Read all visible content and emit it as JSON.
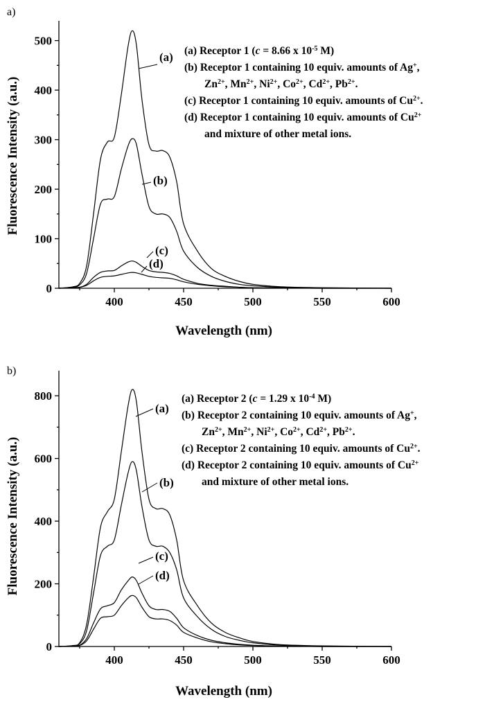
{
  "chart_data": [
    {
      "type": "line",
      "panel_label": "a)",
      "xlabel": "Wavelength (nm)",
      "ylabel": "Fluorescence Intensity (a.u.)",
      "xlim": [
        360,
        600
      ],
      "ylim": [
        0,
        540
      ],
      "xticks": [
        400,
        450,
        500,
        550,
        600
      ],
      "yticks": [
        0,
        100,
        200,
        300,
        400,
        500
      ],
      "grid": false,
      "legend": {
        "placement": "top-right",
        "entries": [
          {
            "runs": [
              [
                "(a) Receptor 1  (",
                ""
              ],
              [
                "c",
                "i"
              ],
              [
                " = 8.66 x 10",
                ""
              ],
              [
                "-5",
                "sup"
              ],
              [
                " M)",
                ""
              ]
            ]
          },
          {
            "runs": [
              [
                "(b) Receptor 1 containing 10 equiv. amounts of Ag",
                ""
              ],
              [
                "+",
                "sup"
              ],
              [
                ",",
                ""
              ]
            ]
          },
          {
            "runs": [
              [
                "Zn",
                ""
              ],
              [
                "2+",
                "sup"
              ],
              [
                ", Mn",
                ""
              ],
              [
                "2+",
                "sup"
              ],
              [
                ", Ni",
                ""
              ],
              [
                "2+",
                "sup"
              ],
              [
                ", Co",
                ""
              ],
              [
                "2+",
                "sup"
              ],
              [
                ", Cd",
                ""
              ],
              [
                "2+",
                "sup"
              ],
              [
                ", Pb",
                ""
              ],
              [
                "2+",
                "sup"
              ],
              [
                ".",
                ""
              ]
            ]
          },
          {
            "runs": [
              [
                "(c) Receptor 1 containing 10 equiv. amounts of Cu",
                ""
              ],
              [
                "2+",
                "sup"
              ],
              [
                ".",
                ""
              ]
            ]
          },
          {
            "runs": [
              [
                "(d) Receptor 1 containing 10 equiv. amounts of Cu",
                ""
              ],
              [
                "2+",
                "sup"
              ]
            ]
          },
          {
            "runs": [
              [
                "and mixture of other metal ions.",
                ""
              ]
            ]
          }
        ]
      },
      "series": [
        {
          "name": "(a)",
          "x": [
            360,
            370,
            375,
            380,
            385,
            390,
            395,
            400,
            405,
            410,
            413,
            416,
            420,
            425,
            430,
            435,
            440,
            445,
            450,
            460,
            470,
            480,
            490,
            500,
            520,
            550,
            600
          ],
          "y": [
            0,
            3,
            10,
            45,
            150,
            260,
            295,
            305,
            390,
            490,
            520,
            490,
            380,
            290,
            277,
            278,
            265,
            215,
            130,
            75,
            40,
            24,
            14,
            8,
            3,
            1,
            0
          ]
        },
        {
          "name": "(b)",
          "x": [
            360,
            370,
            375,
            380,
            385,
            390,
            395,
            400,
            405,
            410,
            413,
            416,
            420,
            425,
            430,
            435,
            440,
            445,
            450,
            460,
            470,
            480,
            490,
            500,
            520,
            550,
            600
          ],
          "y": [
            0,
            2,
            7,
            30,
            100,
            170,
            180,
            185,
            240,
            288,
            302,
            290,
            230,
            165,
            150,
            150,
            143,
            115,
            75,
            42,
            24,
            14,
            8,
            5,
            2,
            1,
            0
          ]
        },
        {
          "name": "(c)",
          "x": [
            360,
            370,
            375,
            380,
            385,
            390,
            395,
            400,
            405,
            410,
            413,
            416,
            420,
            425,
            430,
            435,
            440,
            445,
            450,
            460,
            470,
            480,
            490,
            500,
            520,
            550,
            600
          ],
          "y": [
            0,
            1,
            2,
            8,
            22,
            32,
            35,
            36,
            45,
            53,
            55,
            52,
            44,
            36,
            33,
            32,
            30,
            25,
            18,
            10,
            6,
            4,
            2,
            1,
            0.5,
            0,
            0
          ]
        },
        {
          "name": "(d)",
          "x": [
            360,
            370,
            375,
            380,
            385,
            390,
            395,
            400,
            405,
            410,
            413,
            416,
            420,
            425,
            430,
            435,
            440,
            445,
            450,
            460,
            470,
            480,
            490,
            500,
            520,
            550,
            600
          ],
          "y": [
            0,
            1,
            2,
            6,
            15,
            22,
            24,
            25,
            28,
            31,
            32,
            31,
            28,
            24,
            22,
            21,
            20,
            17,
            13,
            8,
            5,
            3,
            2,
            1,
            0.5,
            0,
            0
          ]
        }
      ]
    },
    {
      "type": "line",
      "panel_label": "b)",
      "xlabel": "Wavelength (nm)",
      "ylabel": "Fluorescence Intensity (a.u.)",
      "xlim": [
        360,
        600
      ],
      "ylim": [
        0,
        880
      ],
      "xticks": [
        400,
        450,
        500,
        550,
        600
      ],
      "yticks": [
        0,
        200,
        400,
        600,
        800
      ],
      "grid": false,
      "legend": {
        "placement": "top-right",
        "entries": [
          {
            "runs": [
              [
                "(a) Receptor 2 (",
                ""
              ],
              [
                "c",
                "i"
              ],
              [
                " = 1.29 x 10",
                ""
              ],
              [
                "-4",
                "sup"
              ],
              [
                " M)",
                ""
              ]
            ]
          },
          {
            "runs": [
              [
                "(b) Receptor 2 containing 10 equiv. amounts of Ag",
                ""
              ],
              [
                "+",
                "sup"
              ],
              [
                ",",
                ""
              ]
            ]
          },
          {
            "runs": [
              [
                "Zn",
                ""
              ],
              [
                "2+",
                "sup"
              ],
              [
                ", Mn",
                ""
              ],
              [
                "2+",
                "sup"
              ],
              [
                ", Ni",
                ""
              ],
              [
                "2+",
                "sup"
              ],
              [
                ", Co",
                ""
              ],
              [
                "2+",
                "sup"
              ],
              [
                ", Cd",
                ""
              ],
              [
                "2+",
                "sup"
              ],
              [
                ", Pb",
                ""
              ],
              [
                "2+",
                "sup"
              ],
              [
                ".",
                ""
              ]
            ]
          },
          {
            "runs": [
              [
                "(c) Receptor 2 containing 10 equiv. amounts of Cu",
                ""
              ],
              [
                "2+",
                "sup"
              ],
              [
                ".",
                ""
              ]
            ]
          },
          {
            "runs": [
              [
                "(d) Receptor 2 containing 10 equiv. amounts of Cu",
                ""
              ],
              [
                "2+",
                "sup"
              ]
            ]
          },
          {
            "runs": [
              [
                "and mixture of other metal ions.",
                ""
              ]
            ]
          }
        ]
      },
      "series": [
        {
          "name": "(a)",
          "x": [
            360,
            370,
            375,
            380,
            385,
            390,
            395,
            400,
            405,
            410,
            413,
            416,
            420,
            425,
            430,
            435,
            440,
            445,
            450,
            460,
            470,
            480,
            490,
            500,
            520,
            550,
            600
          ],
          "y": [
            0,
            3,
            12,
            70,
            220,
            380,
            430,
            470,
            620,
            770,
            820,
            780,
            620,
            470,
            440,
            440,
            420,
            340,
            210,
            130,
            75,
            45,
            28,
            16,
            6,
            2,
            0
          ]
        },
        {
          "name": "(b)",
          "x": [
            360,
            370,
            375,
            380,
            385,
            390,
            395,
            400,
            405,
            410,
            413,
            416,
            420,
            425,
            430,
            435,
            440,
            445,
            450,
            460,
            470,
            480,
            490,
            500,
            520,
            550,
            600
          ],
          "y": [
            0,
            2,
            9,
            50,
            170,
            290,
            320,
            340,
            450,
            555,
            590,
            560,
            445,
            340,
            320,
            320,
            300,
            245,
            155,
            95,
            55,
            32,
            20,
            12,
            4,
            1,
            0
          ]
        },
        {
          "name": "(c)",
          "x": [
            360,
            370,
            375,
            380,
            385,
            390,
            395,
            400,
            405,
            410,
            413,
            416,
            420,
            425,
            430,
            435,
            440,
            445,
            450,
            460,
            470,
            480,
            490,
            500,
            520,
            550,
            600
          ],
          "y": [
            0,
            1,
            4,
            25,
            75,
            120,
            130,
            140,
            180,
            210,
            222,
            210,
            170,
            130,
            118,
            118,
            112,
            90,
            60,
            35,
            20,
            12,
            7,
            4,
            1,
            0,
            0
          ]
        },
        {
          "name": "(d)",
          "x": [
            360,
            370,
            375,
            380,
            385,
            390,
            395,
            400,
            405,
            410,
            413,
            416,
            420,
            425,
            430,
            435,
            440,
            445,
            450,
            460,
            470,
            480,
            490,
            500,
            520,
            550,
            600
          ],
          "y": [
            0,
            1,
            3,
            18,
            55,
            90,
            95,
            100,
            130,
            155,
            163,
            155,
            125,
            95,
            88,
            88,
            83,
            68,
            45,
            27,
            15,
            9,
            5,
            3,
            1,
            0,
            0
          ]
        }
      ]
    }
  ]
}
